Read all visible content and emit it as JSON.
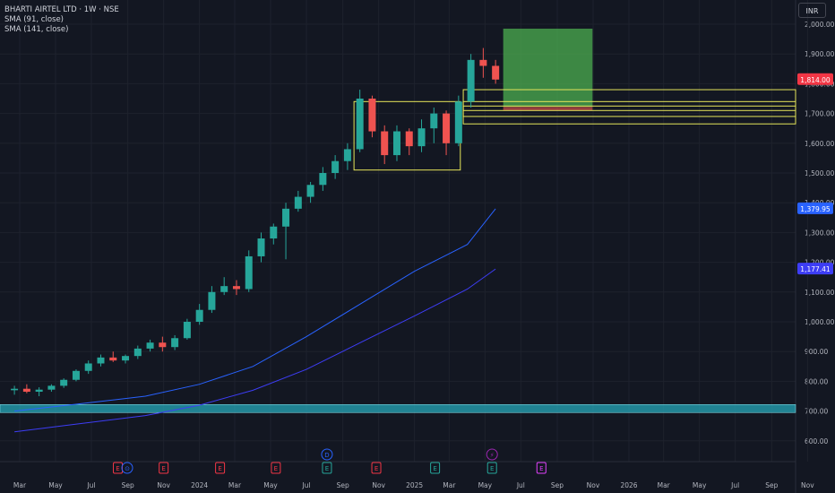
{
  "legend": {
    "title": "BHARTI AIRTEL LTD · 1W · NSE",
    "sma1": "SMA (91, close)",
    "sma2": "SMA (141, close)"
  },
  "currency": "INR",
  "colors": {
    "background": "#131722",
    "grid": "#1e222d",
    "up": "#26a69a",
    "down": "#ef5350",
    "sma91": "#2962ff",
    "sma141": "#3d3df5",
    "zone_rect": "#e6e65a",
    "target_box": "#4caf50",
    "support_band": "#26a7b8",
    "axis_text": "#b2b5be"
  },
  "chart_data": {
    "type": "candlestick",
    "title": "BHARTI AIRTEL LTD · 1W · NSE",
    "y_ticks": [
      "2,000.00",
      "1,900.00",
      "1,800.00",
      "1,700.00",
      "1,600.00",
      "1,500.00",
      "1,400.00",
      "1,300.00",
      "1,200.00",
      "1,100.00",
      "1,000.00",
      "900.00",
      "800.00",
      "700.00",
      "600.00"
    ],
    "y_tick_values": [
      2000,
      1900,
      1800,
      1700,
      1600,
      1500,
      1400,
      1300,
      1200,
      1100,
      1000,
      900,
      800,
      700,
      600
    ],
    "ylim": [
      560,
      2090
    ],
    "x_ticks": [
      "Mar",
      "May",
      "Jul",
      "Sep",
      "Nov",
      "2024",
      "Mar",
      "May",
      "Jul",
      "Sep",
      "Nov",
      "2025",
      "Mar",
      "May",
      "Jul",
      "Sep",
      "Nov",
      "2026",
      "Mar",
      "May",
      "Jul",
      "Sep",
      "Nov"
    ],
    "x_tick_dates": [
      "2023-03-01",
      "2023-05-01",
      "2023-07-01",
      "2023-09-01",
      "2023-11-01",
      "2024-01-01",
      "2024-03-01",
      "2024-05-01",
      "2024-07-01",
      "2024-09-01",
      "2024-11-01",
      "2025-01-01",
      "2025-03-01",
      "2025-05-01",
      "2025-07-01",
      "2025-09-01",
      "2025-11-01",
      "2026-01-01",
      "2026-03-01",
      "2026-05-01",
      "2026-07-01",
      "2026-09-01",
      "2026-11-01"
    ],
    "candles": [
      {
        "date": "2023-02-20",
        "o": 770,
        "h": 785,
        "l": 755,
        "c": 775
      },
      {
        "date": "2023-03-13",
        "o": 775,
        "h": 790,
        "l": 760,
        "c": 765
      },
      {
        "date": "2023-04-03",
        "o": 765,
        "h": 780,
        "l": 750,
        "c": 772
      },
      {
        "date": "2023-04-24",
        "o": 772,
        "h": 790,
        "l": 765,
        "c": 785
      },
      {
        "date": "2023-05-15",
        "o": 785,
        "h": 810,
        "l": 778,
        "c": 805
      },
      {
        "date": "2023-06-05",
        "o": 805,
        "h": 840,
        "l": 800,
        "c": 835
      },
      {
        "date": "2023-06-26",
        "o": 835,
        "h": 870,
        "l": 825,
        "c": 860
      },
      {
        "date": "2023-07-17",
        "o": 860,
        "h": 890,
        "l": 850,
        "c": 880
      },
      {
        "date": "2023-08-07",
        "o": 880,
        "h": 900,
        "l": 865,
        "c": 870
      },
      {
        "date": "2023-08-28",
        "o": 870,
        "h": 890,
        "l": 860,
        "c": 885
      },
      {
        "date": "2023-09-18",
        "o": 885,
        "h": 920,
        "l": 875,
        "c": 910
      },
      {
        "date": "2023-10-09",
        "o": 910,
        "h": 940,
        "l": 900,
        "c": 930
      },
      {
        "date": "2023-10-30",
        "o": 930,
        "h": 950,
        "l": 900,
        "c": 915
      },
      {
        "date": "2023-11-20",
        "o": 915,
        "h": 955,
        "l": 905,
        "c": 945
      },
      {
        "date": "2023-12-11",
        "o": 945,
        "h": 1010,
        "l": 940,
        "c": 1000
      },
      {
        "date": "2024-01-01",
        "o": 1000,
        "h": 1060,
        "l": 990,
        "c": 1040
      },
      {
        "date": "2024-01-22",
        "o": 1040,
        "h": 1120,
        "l": 1030,
        "c": 1100
      },
      {
        "date": "2024-02-12",
        "o": 1100,
        "h": 1150,
        "l": 1090,
        "c": 1120
      },
      {
        "date": "2024-03-04",
        "o": 1120,
        "h": 1140,
        "l": 1090,
        "c": 1110
      },
      {
        "date": "2024-03-25",
        "o": 1110,
        "h": 1240,
        "l": 1100,
        "c": 1220
      },
      {
        "date": "2024-04-15",
        "o": 1220,
        "h": 1300,
        "l": 1200,
        "c": 1280
      },
      {
        "date": "2024-05-06",
        "o": 1280,
        "h": 1330,
        "l": 1260,
        "c": 1320
      },
      {
        "date": "2024-05-27",
        "o": 1320,
        "h": 1400,
        "l": 1210,
        "c": 1380
      },
      {
        "date": "2024-06-17",
        "o": 1380,
        "h": 1440,
        "l": 1370,
        "c": 1420
      },
      {
        "date": "2024-07-08",
        "o": 1420,
        "h": 1470,
        "l": 1400,
        "c": 1460
      },
      {
        "date": "2024-07-29",
        "o": 1460,
        "h": 1520,
        "l": 1440,
        "c": 1500
      },
      {
        "date": "2024-08-19",
        "o": 1500,
        "h": 1560,
        "l": 1480,
        "c": 1540
      },
      {
        "date": "2024-09-09",
        "o": 1540,
        "h": 1600,
        "l": 1510,
        "c": 1580
      },
      {
        "date": "2024-09-30",
        "o": 1580,
        "h": 1780,
        "l": 1570,
        "c": 1750
      },
      {
        "date": "2024-10-21",
        "o": 1750,
        "h": 1760,
        "l": 1620,
        "c": 1640
      },
      {
        "date": "2024-11-11",
        "o": 1640,
        "h": 1660,
        "l": 1530,
        "c": 1560
      },
      {
        "date": "2024-12-02",
        "o": 1560,
        "h": 1660,
        "l": 1540,
        "c": 1640
      },
      {
        "date": "2024-12-23",
        "o": 1640,
        "h": 1650,
        "l": 1560,
        "c": 1590
      },
      {
        "date": "2025-01-13",
        "o": 1590,
        "h": 1680,
        "l": 1570,
        "c": 1650
      },
      {
        "date": "2025-02-03",
        "o": 1650,
        "h": 1720,
        "l": 1600,
        "c": 1700
      },
      {
        "date": "2025-02-24",
        "o": 1700,
        "h": 1710,
        "l": 1560,
        "c": 1600
      },
      {
        "date": "2025-03-17",
        "o": 1600,
        "h": 1760,
        "l": 1590,
        "c": 1740
      },
      {
        "date": "2025-04-07",
        "o": 1740,
        "h": 1900,
        "l": 1720,
        "c": 1880
      },
      {
        "date": "2025-04-28",
        "o": 1880,
        "h": 1920,
        "l": 1820,
        "c": 1860
      },
      {
        "date": "2025-05-19",
        "o": 1860,
        "h": 1880,
        "l": 1800,
        "c": 1814
      }
    ],
    "series": [
      {
        "name": "SMA (91, close)",
        "points": [
          [
            "2023-02-20",
            700
          ],
          [
            "2023-06-01",
            722
          ],
          [
            "2023-10-01",
            750
          ],
          [
            "2024-01-01",
            790
          ],
          [
            "2024-04-01",
            850
          ],
          [
            "2024-07-01",
            950
          ],
          [
            "2024-10-01",
            1060
          ],
          [
            "2025-01-01",
            1170
          ],
          [
            "2025-04-01",
            1260
          ],
          [
            "2025-05-19",
            1379.95
          ]
        ]
      },
      {
        "name": "SMA (141, close)",
        "points": [
          [
            "2023-02-20",
            630
          ],
          [
            "2023-06-01",
            655
          ],
          [
            "2023-10-01",
            685
          ],
          [
            "2024-01-01",
            720
          ],
          [
            "2024-04-01",
            770
          ],
          [
            "2024-07-01",
            840
          ],
          [
            "2024-10-01",
            930
          ],
          [
            "2025-01-01",
            1020
          ],
          [
            "2025-04-01",
            1110
          ],
          [
            "2025-05-19",
            1177.41
          ]
        ]
      }
    ],
    "price_labels": [
      {
        "text": "1,814.00",
        "value": 1814,
        "color": "#f23645"
      },
      {
        "text": "1,379.95",
        "value": 1379.95,
        "color": "#2962ff"
      },
      {
        "text": "1,177.41",
        "value": 1177.41,
        "color": "#3d3df5"
      }
    ],
    "zones": [
      {
        "from_date": "2024-09-20",
        "to_date": "2025-03-20",
        "top": 1740,
        "bottom": 1510
      },
      {
        "from_date": "2025-03-25",
        "to_date": "2026-12-31",
        "top": 1780,
        "bottom": 1665
      },
      {
        "from_date": "2025-03-25",
        "to_date": "2026-12-31",
        "top": 1740,
        "bottom": 1690
      },
      {
        "from_date": "2025-03-25",
        "to_date": "2026-12-31",
        "top": 1725,
        "bottom": 1710
      }
    ],
    "target_box": {
      "from_date": "2025-06-01",
      "to_date": "2025-10-31",
      "top": 1985,
      "bottom": 1722
    },
    "support_band": {
      "top": 722,
      "bottom": 695
    },
    "events": [
      {
        "date": "2023-08-15",
        "symbol": "E",
        "type": "earnings-red"
      },
      {
        "date": "2023-08-31",
        "symbol": "⊙",
        "type": "split-blue"
      },
      {
        "date": "2023-11-01",
        "symbol": "E",
        "type": "earnings-red"
      },
      {
        "date": "2024-02-05",
        "symbol": "E",
        "type": "earnings-red"
      },
      {
        "date": "2024-05-10",
        "symbol": "E",
        "type": "earnings-red"
      },
      {
        "date": "2024-08-05",
        "symbol": "E",
        "type": "earnings-green"
      },
      {
        "date": "2024-08-05",
        "symbol": "D",
        "type": "dividend-blue"
      },
      {
        "date": "2024-10-28",
        "symbol": "E",
        "type": "earnings-red"
      },
      {
        "date": "2025-02-05",
        "symbol": "E",
        "type": "earnings-green"
      },
      {
        "date": "2025-05-13",
        "symbol": "E",
        "type": "earnings-green"
      },
      {
        "date": "2025-05-13",
        "symbol": "⚡",
        "type": "flash-purple"
      },
      {
        "date": "2025-08-05",
        "symbol": "E",
        "type": "earnings-purple"
      }
    ]
  }
}
